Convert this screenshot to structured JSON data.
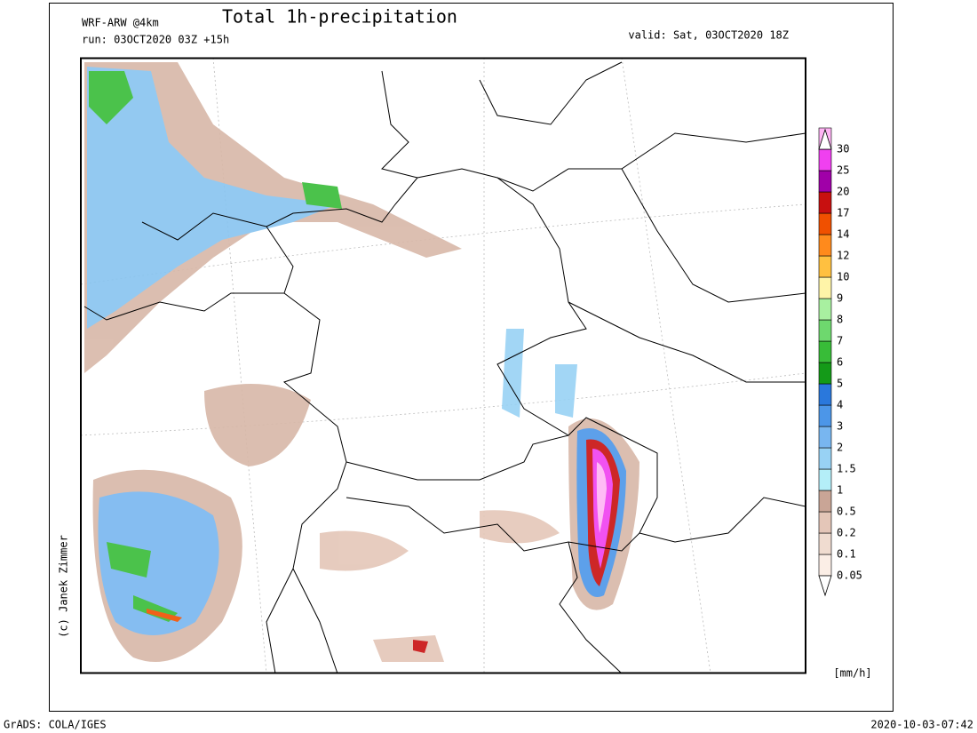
{
  "header": {
    "model": "WRF-ARW @4km",
    "title": "Total 1h-precipitation",
    "run": "run: 03OCT2020 03Z +15h",
    "valid": "valid: Sat, 03OCT2020 18Z"
  },
  "legend": {
    "levels": [
      0.05,
      0.1,
      0.2,
      0.5,
      1,
      1.5,
      2,
      3,
      4,
      5,
      6,
      7,
      8,
      9,
      10,
      12,
      14,
      17,
      20,
      25,
      30
    ],
    "colors": [
      "#fbeee6",
      "#f0dcd0",
      "#e4c6b8",
      "#c9a596",
      "#b4eef8",
      "#98d2f4",
      "#78b6f0",
      "#4c96e8",
      "#2a78dc",
      "#149a18",
      "#38bc38",
      "#6ed86e",
      "#a8f0a0",
      "#fff4a8",
      "#ffc040",
      "#ff8a1c",
      "#f05000",
      "#c81010",
      "#a000a8",
      "#f040f0",
      "#ffb4f4"
    ],
    "unit": "[mm/h]"
  },
  "credit": "(c) Janek Zimmer",
  "footer": {
    "left": "GrADS: COLA/IGES",
    "right": "2020-10-03-07:42"
  }
}
